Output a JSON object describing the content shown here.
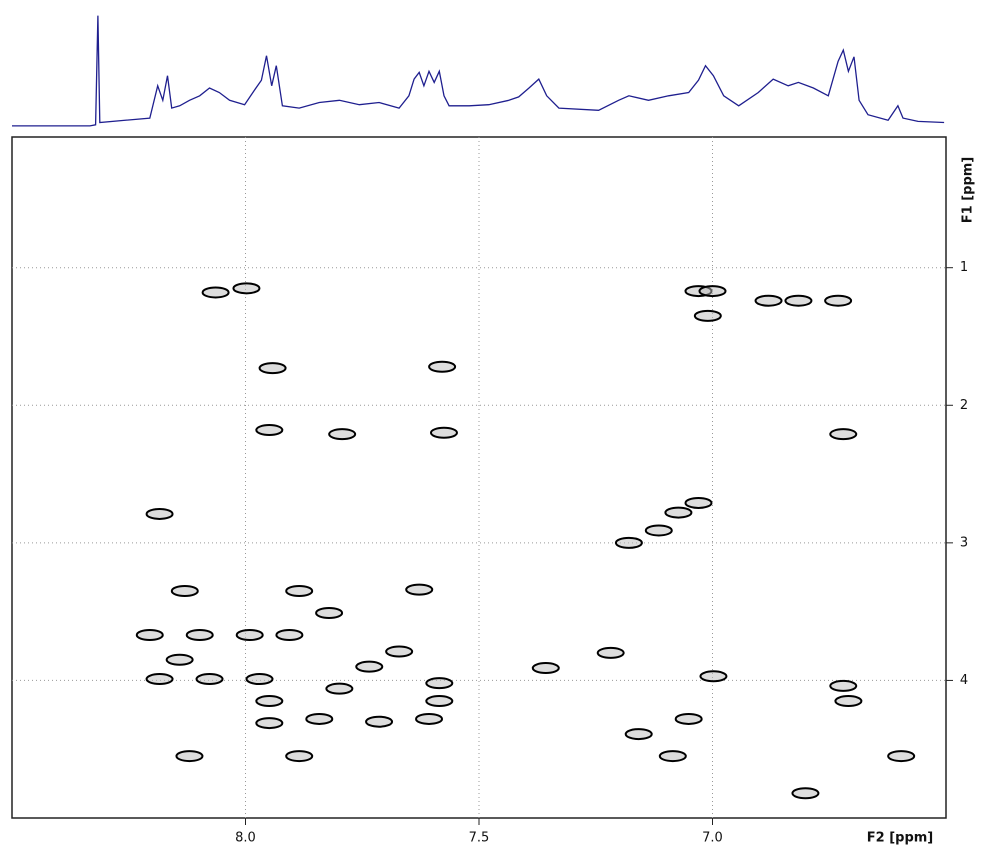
{
  "chart_data": [
    {
      "type": "line",
      "xlim": [
        8.5,
        6.5
      ],
      "ylim": [
        0,
        1.05
      ],
      "series": [
        {
          "color": "#1f1f8f",
          "x": [
            8.5,
            8.333,
            8.321,
            8.316,
            8.312,
            8.205,
            8.188,
            8.177,
            8.167,
            8.158,
            8.141,
            8.12,
            8.098,
            8.077,
            8.056,
            8.034,
            8.002,
            7.981,
            7.966,
            7.955,
            7.944,
            7.934,
            7.921,
            7.885,
            7.842,
            7.799,
            7.756,
            7.714,
            7.671,
            7.65,
            7.639,
            7.628,
            7.618,
            7.607,
            7.596,
            7.585,
            7.575,
            7.564,
            7.521,
            7.479,
            7.436,
            7.415,
            7.393,
            7.372,
            7.355,
            7.329,
            7.244,
            7.201,
            7.179,
            7.137,
            7.094,
            7.051,
            7.03,
            7.015,
            6.998,
            6.976,
            6.944,
            6.902,
            6.87,
            6.838,
            6.816,
            6.784,
            6.752,
            6.731,
            6.72,
            6.709,
            6.697,
            6.686,
            6.667,
            6.624,
            6.603,
            6.592,
            6.56,
            6.504
          ],
          "values": [
            0.01,
            0.01,
            0.02,
            1.0,
            0.04,
            0.08,
            0.37,
            0.24,
            0.46,
            0.17,
            0.19,
            0.24,
            0.28,
            0.35,
            0.31,
            0.24,
            0.2,
            0.33,
            0.42,
            0.64,
            0.37,
            0.55,
            0.19,
            0.17,
            0.22,
            0.24,
            0.2,
            0.22,
            0.17,
            0.28,
            0.43,
            0.49,
            0.37,
            0.5,
            0.4,
            0.5,
            0.28,
            0.19,
            0.19,
            0.2,
            0.24,
            0.27,
            0.35,
            0.43,
            0.28,
            0.17,
            0.15,
            0.24,
            0.28,
            0.24,
            0.28,
            0.31,
            0.42,
            0.55,
            0.46,
            0.28,
            0.19,
            0.31,
            0.43,
            0.37,
            0.4,
            0.35,
            0.28,
            0.59,
            0.69,
            0.5,
            0.63,
            0.24,
            0.11,
            0.06,
            0.19,
            0.08,
            0.05,
            0.04
          ]
        }
      ]
    },
    {
      "type": "scatter",
      "x_label": "F2 [ppm]",
      "y_label": "F1 [ppm]",
      "xlim": [
        8.5,
        6.5
      ],
      "ylim": [
        0.05,
        5.0
      ],
      "xticks": [
        {
          "value": 8,
          "label": "8.0"
        },
        {
          "value": 7.5,
          "label": "7.5"
        },
        {
          "value": 7,
          "label": "7.0"
        }
      ],
      "yticks": [
        1,
        2,
        3,
        4
      ],
      "grid": true,
      "series": [
        {
          "color": "#000000",
          "x": [
            8.064,
            7.998,
            7.03,
            7.0,
            7.01,
            6.88,
            6.816,
            6.731,
            7.942,
            7.579,
            7.949,
            7.793,
            7.575,
            6.72,
            8.184,
            7.115,
            7.073,
            7.03,
            7.179,
            8.13,
            7.885,
            7.628,
            7.821,
            8.205,
            8.098,
            7.991,
            7.906,
            8.141,
            7.671,
            7.735,
            7.357,
            7.218,
            8.184,
            8.077,
            7.97,
            7.949,
            7.799,
            7.585,
            7.585,
            6.998,
            6.72,
            6.709,
            7.949,
            7.842,
            7.714,
            7.607,
            7.158,
            7.051,
            8.12,
            7.885,
            7.085,
            6.596,
            6.801
          ],
          "y": [
            1.18,
            1.15,
            1.17,
            1.17,
            1.35,
            1.24,
            1.24,
            1.24,
            1.73,
            1.72,
            2.18,
            2.21,
            2.2,
            2.21,
            2.79,
            2.91,
            2.78,
            2.71,
            3.0,
            3.35,
            3.35,
            3.34,
            3.51,
            3.67,
            3.67,
            3.67,
            3.67,
            3.85,
            3.79,
            3.9,
            3.91,
            3.8,
            3.99,
            3.99,
            3.99,
            4.15,
            4.06,
            4.02,
            4.15,
            3.97,
            4.04,
            4.15,
            4.31,
            4.28,
            4.3,
            4.28,
            4.39,
            4.28,
            4.55,
            4.55,
            4.55,
            4.55,
            4.82
          ]
        }
      ]
    }
  ]
}
